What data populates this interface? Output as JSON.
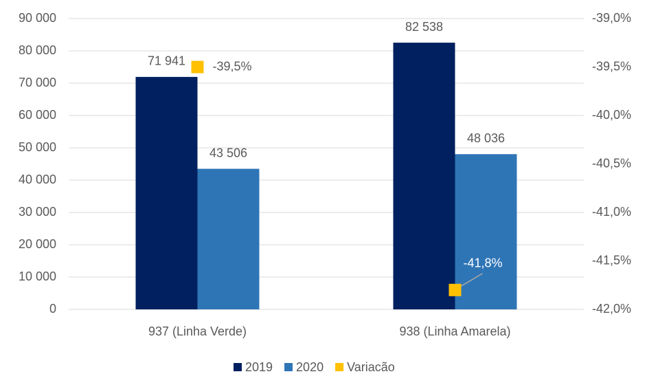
{
  "chart_data": {
    "type": "bar",
    "categories": [
      "937 (Linha Verde)",
      "938 (Linha Amarela)"
    ],
    "series": [
      {
        "name": "2019",
        "color": "#002060",
        "values": [
          71941,
          82538
        ],
        "value_labels": [
          "71 941",
          "82 538"
        ]
      },
      {
        "name": "2020",
        "color": "#2e75b6",
        "values": [
          43506,
          48036
        ],
        "value_labels": [
          "43 506",
          "48 036"
        ]
      },
      {
        "name": "Variacão",
        "color": "#ffc000",
        "type": "scatter",
        "axis": "y2",
        "values": [
          -39.5,
          -41.8
        ],
        "value_labels": [
          "-39,5%",
          "-41,8%"
        ]
      }
    ],
    "ylim": [
      0,
      90000
    ],
    "yticks": [
      0,
      {
        "value": 10000,
        "label": "10 000"
      },
      {
        "value": 20000,
        "label": "20 000"
      },
      {
        "value": 30000,
        "label": "30 000"
      },
      {
        "value": 40000,
        "label": "40 000"
      },
      {
        "value": 50000,
        "label": "50 000"
      },
      {
        "value": 60000,
        "label": "60 000"
      },
      {
        "value": 70000,
        "label": "70 000"
      },
      {
        "value": 80000,
        "label": "80 000"
      },
      {
        "value": 90000,
        "label": "90 000"
      }
    ],
    "y2lim": [
      -42,
      -39
    ],
    "y2ticks": [
      {
        "value": -42,
        "label": "-42,0%"
      },
      {
        "value": -41.5,
        "label": "-41,5%"
      },
      {
        "value": -41,
        "label": "-41,0%"
      },
      {
        "value": -40.5,
        "label": "-40,5%"
      },
      {
        "value": -40,
        "label": "-40,0%"
      },
      {
        "value": -39.5,
        "label": "-39,5%"
      },
      {
        "value": -39,
        "label": "-39,0%"
      }
    ],
    "grid": true,
    "legend": "bottom"
  }
}
